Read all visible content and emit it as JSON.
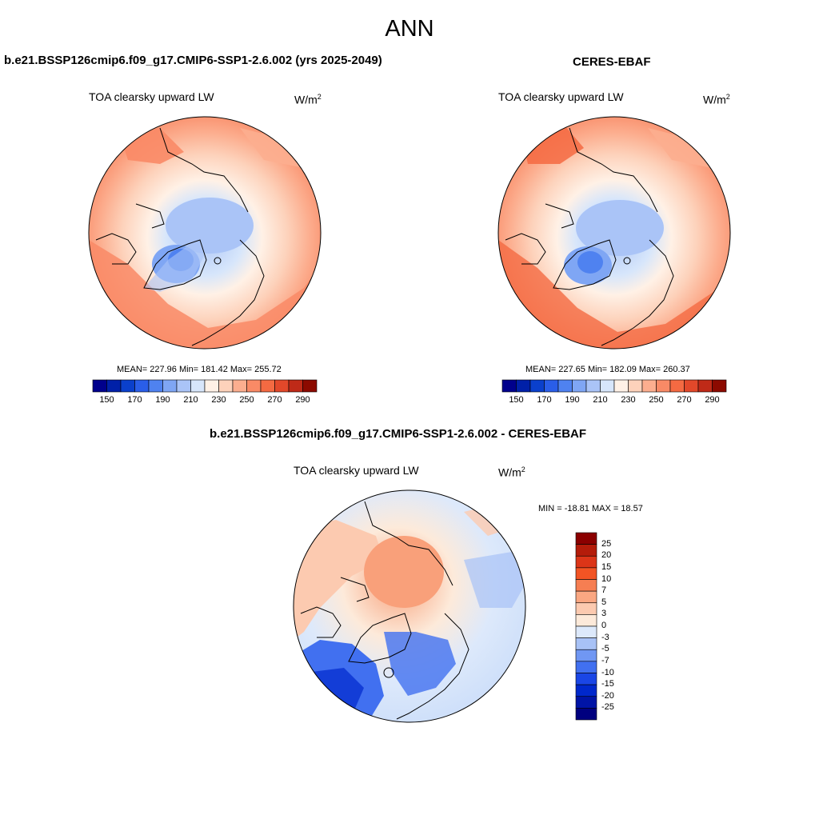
{
  "page": {
    "season": "ANN",
    "colors": {
      "abs_scale": [
        "#00008c",
        "#0020a8",
        "#0a40cc",
        "#2a5ee8",
        "#4f82f0",
        "#7fa6f4",
        "#aac4f7",
        "#d7e6fb",
        "#fff1e6",
        "#fdd2bb",
        "#fcae8f",
        "#f98a66",
        "#f46a42",
        "#e2482a",
        "#bf2a18",
        "#8c0a00"
      ],
      "diff_scale": [
        "#00007f",
        "#0014a6",
        "#0028cc",
        "#1a46e6",
        "#4170f0",
        "#7097f3",
        "#a8c2f6",
        "#dde9fb",
        "#fdeada",
        "#fccab0",
        "#faa782",
        "#f67e52",
        "#f25424",
        "#dc3518",
        "#b41c0a",
        "#8b0000"
      ]
    }
  },
  "panels": {
    "model": {
      "title": "b.e21.BSSP126cmip6.f09_g17.CMIP6-SSP1-2.6.002 (yrs 2025-2049)",
      "variable": "TOA clearsky upward LW",
      "units_base": "W/m",
      "units_exp": "2",
      "stats": "MEAN= 227.96  Min= 181.42  Max= 255.72"
    },
    "obs": {
      "title": "CERES-EBAF",
      "variable": "TOA clearsky upward LW",
      "units_base": "W/m",
      "units_exp": "2",
      "stats": "MEAN= 227.65  Min= 182.09  Max= 260.37"
    },
    "diff": {
      "title": "b.e21.BSSP126cmip6.f09_g17.CMIP6-SSP1-2.6.002 - CERES-EBAF",
      "variable": "TOA clearsky upward LW",
      "units_base": "W/m",
      "units_exp": "2",
      "stats": "MIN = -18.81 MAX =  18.57"
    }
  },
  "chart_data": [
    {
      "type": "heatmap",
      "projection": "north polar stereographic",
      "title": "b.e21.BSSP126cmip6.f09_g17.CMIP6-SSP1-2.6.002 (yrs 2025-2049)",
      "variable": "TOA clearsky upward LW",
      "units": "W/m2",
      "mean": 227.96,
      "min": 181.42,
      "max": 255.72,
      "colorbar": {
        "orientation": "horizontal",
        "levels": [
          150,
          160,
          170,
          180,
          190,
          200,
          210,
          220,
          230,
          240,
          250,
          260,
          270,
          280,
          290
        ],
        "tick_labels": [
          "150",
          "170",
          "190",
          "210",
          "230",
          "250",
          "270",
          "290"
        ]
      }
    },
    {
      "type": "heatmap",
      "projection": "north polar stereographic",
      "title": "CERES-EBAF",
      "variable": "TOA clearsky upward LW",
      "units": "W/m2",
      "mean": 227.65,
      "min": 182.09,
      "max": 260.37,
      "colorbar": {
        "orientation": "horizontal",
        "levels": [
          150,
          160,
          170,
          180,
          190,
          200,
          210,
          220,
          230,
          240,
          250,
          260,
          270,
          280,
          290
        ],
        "tick_labels": [
          "150",
          "170",
          "190",
          "210",
          "230",
          "250",
          "270",
          "290"
        ]
      }
    },
    {
      "type": "heatmap",
      "projection": "north polar stereographic",
      "title": "b.e21.BSSP126cmip6.f09_g17.CMIP6-SSP1-2.6.002 - CERES-EBAF",
      "variable": "TOA clearsky upward LW",
      "units": "W/m2",
      "min": -18.81,
      "max": 18.57,
      "colorbar": {
        "orientation": "vertical",
        "levels": [
          25,
          20,
          15,
          10,
          7,
          5,
          3,
          0,
          -3,
          -5,
          -7,
          -10,
          -15,
          -20,
          -25
        ],
        "tick_labels": [
          "25",
          "20",
          "15",
          "10",
          "7",
          "5",
          "3",
          "0",
          "-3",
          "-5",
          "-7",
          "-10",
          "-15",
          "-20",
          "-25"
        ]
      }
    }
  ]
}
